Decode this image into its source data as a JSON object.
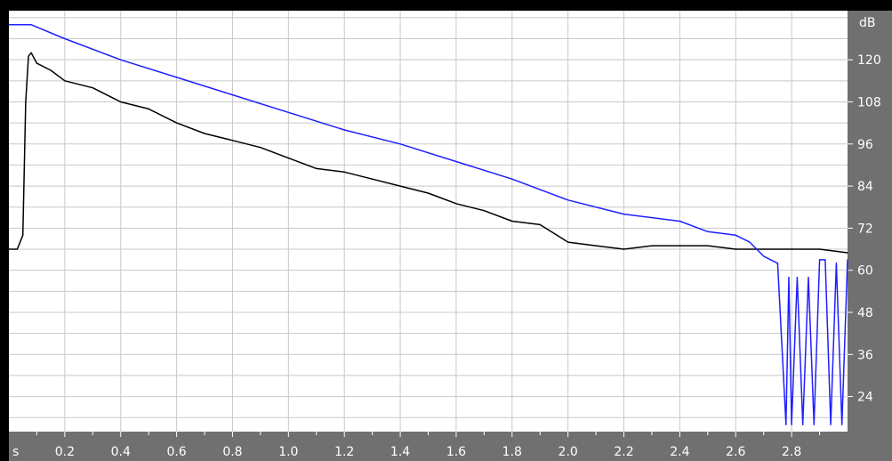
{
  "chart_data": {
    "type": "line",
    "title": "",
    "xlabel": "s",
    "ylabel": "dB",
    "xlim": [
      0.0,
      3.0
    ],
    "ylim": [
      14,
      134
    ],
    "grid": true,
    "x_ticks": [
      "0.2",
      "0.4",
      "0.6",
      "0.8",
      "1.0",
      "1.2",
      "1.4",
      "1.6",
      "1.8",
      "2.0",
      "2.2",
      "2.4",
      "2.6",
      "2.8"
    ],
    "y_ticks": [
      "120",
      "108",
      "96",
      "84",
      "72",
      "60",
      "48",
      "36",
      "24"
    ],
    "series": [
      {
        "color": "#000000",
        "x": [
          0.0,
          0.03,
          0.05,
          0.06,
          0.07,
          0.08,
          0.1,
          0.15,
          0.2,
          0.3,
          0.4,
          0.5,
          0.6,
          0.7,
          0.8,
          0.9,
          1.0,
          1.1,
          1.2,
          1.3,
          1.4,
          1.5,
          1.6,
          1.7,
          1.8,
          1.9,
          2.0,
          2.1,
          2.2,
          2.3,
          2.4,
          2.5,
          2.6,
          2.7,
          2.8,
          2.9,
          3.0
        ],
        "y": [
          66,
          66,
          70,
          108,
          121,
          122,
          119,
          117,
          114,
          112,
          108,
          106,
          102,
          99,
          97,
          95,
          92,
          89,
          88,
          86,
          84,
          82,
          79,
          77,
          74,
          73,
          68,
          67,
          66,
          67,
          67,
          67,
          66,
          66,
          66,
          66,
          65
        ]
      },
      {
        "color": "#1f1fff",
        "x": [
          0.0,
          0.08,
          0.2,
          0.4,
          0.6,
          0.8,
          1.0,
          1.2,
          1.4,
          1.6,
          1.8,
          2.0,
          2.2,
          2.4,
          2.5,
          2.6,
          2.65,
          2.7,
          2.75,
          2.78,
          2.79,
          2.8,
          2.82,
          2.84,
          2.86,
          2.88,
          2.9,
          2.92,
          2.94,
          2.96,
          2.98,
          3.0
        ],
        "y": [
          130,
          130,
          126,
          120,
          115,
          110,
          105,
          100,
          96,
          91,
          86,
          80,
          76,
          74,
          71,
          70,
          68,
          64,
          62,
          16,
          58,
          16,
          58,
          16,
          58,
          16,
          63,
          63,
          16,
          62,
          16,
          63
        ]
      }
    ]
  }
}
